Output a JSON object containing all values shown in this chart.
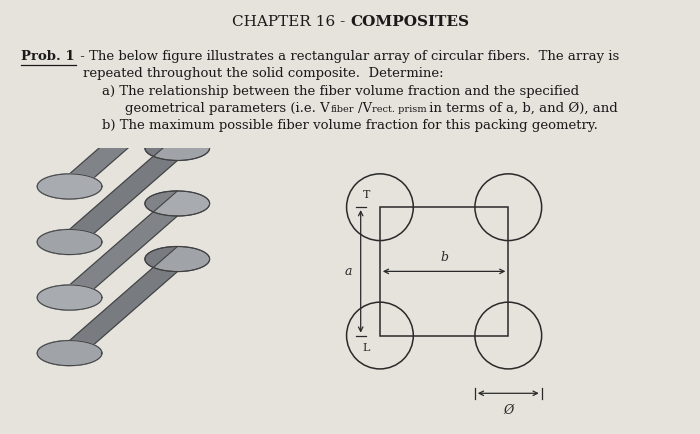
{
  "bg_color": "#e6e2dc",
  "text_color": "#1a1a1a",
  "dlc": "#2a2a2a",
  "title_normal": "CHAPTER 16 - ",
  "title_bold": "COMPOSITES",
  "line1_prefix": "Prob. 1",
  "line1_rest": " - The below figure illustrates a rectangular array of circular fibers.  The array is",
  "line2": "repeated throughout the solid composite.  Determine:",
  "line3a": "a) The relationship between the fiber volume fraction and the specified",
  "line3b_main": "geometrical parameters (i.e. V",
  "line3b_sub1": "fiber",
  "line3b_mid": "/V",
  "line3b_sub2": "rect. prism",
  "line3b_end": " in terms of a, b, and Ø), and",
  "line4": "b) The maximum possible fiber volume fraction for this packing geometry.",
  "label_a": "a",
  "label_b": "b",
  "label_phi": "Ø"
}
